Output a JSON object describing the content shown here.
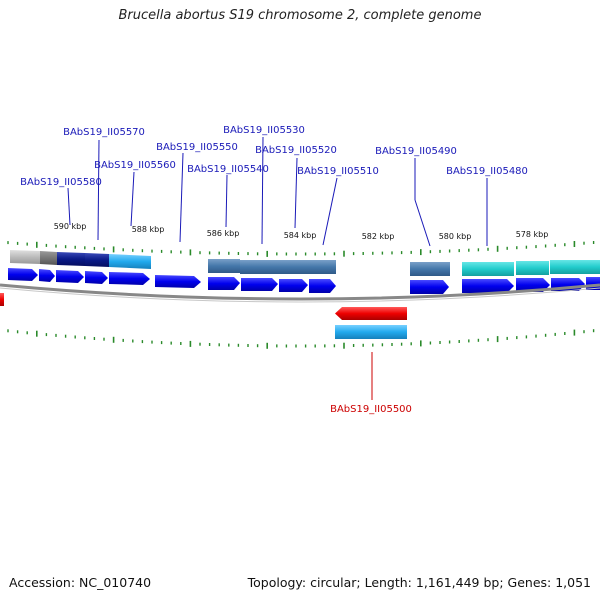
{
  "title": "Brucella abortus S19 chromosome 2, complete genome",
  "footer": {
    "accession": "Accession: NC_010740",
    "info": "Topology: circular; Length: 1,161,449 bp; Genes: 1,051"
  },
  "colors": {
    "forward_gene": "#0000ee",
    "reverse_gene": "#ee0000",
    "label_forward": "#1a1ab8",
    "label_reverse": "#cc0000",
    "backbone": "#8a8a8a",
    "tick": "#2a8a2a",
    "cog_blue": "#4477aa",
    "cog_cyan": "#22cccc",
    "cog_sky": "#22aaee",
    "cog_navy": "#0a1a88"
  },
  "kbp_labels": [
    "590 kbp",
    "588 kbp",
    "586 kbp",
    "584 kbp",
    "582 kbp",
    "580 kbp",
    "578 kbp"
  ],
  "gene_labels_forward": [
    "BAbS19_II05580",
    "BAbS19_II05570",
    "BAbS19_II05560",
    "BAbS19_II05550",
    "BAbS19_II05540",
    "BAbS19_II05530",
    "BAbS19_II05520",
    "BAbS19_II05510",
    "BAbS19_II05490",
    "BAbS19_II05480"
  ],
  "gene_labels_reverse": [
    "BAbS19_II05500"
  ]
}
